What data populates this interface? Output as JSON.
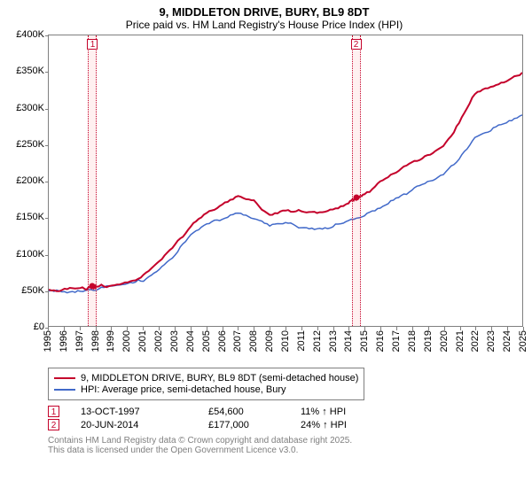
{
  "title_line1": "9, MIDDLETON DRIVE, BURY, BL9 8DT",
  "title_line2": "Price paid vs. HM Land Registry's House Price Index (HPI)",
  "chart": {
    "type": "line",
    "x_start": 1995,
    "x_end": 2025,
    "y_min": 0,
    "y_max": 400000,
    "y_step": 50000,
    "y_prefix": "£",
    "grid_color": "#7f7f7f",
    "background": "#ffffff",
    "series": [
      {
        "name": "9, MIDDLETON DRIVE, BURY, BL9 8DT (semi-detached house)",
        "color": "#c4022b",
        "width": 2,
        "points": [
          [
            1995,
            50000
          ],
          [
            1996,
            51000
          ],
          [
            1997,
            52000
          ],
          [
            1997.78,
            54600
          ],
          [
            1998,
            55000
          ],
          [
            1999,
            58000
          ],
          [
            2000,
            62000
          ],
          [
            2001,
            70000
          ],
          [
            2002,
            88000
          ],
          [
            2003,
            112000
          ],
          [
            2004,
            140000
          ],
          [
            2005,
            158000
          ],
          [
            2006,
            168000
          ],
          [
            2007,
            178000
          ],
          [
            2008,
            172000
          ],
          [
            2009,
            155000
          ],
          [
            2010,
            162000
          ],
          [
            2011,
            158000
          ],
          [
            2012,
            156000
          ],
          [
            2013,
            160000
          ],
          [
            2014,
            172000
          ],
          [
            2014.47,
            177000
          ],
          [
            2015,
            183000
          ],
          [
            2016,
            198000
          ],
          [
            2017,
            212000
          ],
          [
            2018,
            225000
          ],
          [
            2019,
            237000
          ],
          [
            2020,
            250000
          ],
          [
            2021,
            280000
          ],
          [
            2022,
            320000
          ],
          [
            2023,
            330000
          ],
          [
            2024,
            340000
          ],
          [
            2025,
            350000
          ]
        ]
      },
      {
        "name": "HPI: Average price, semi-detached house, Bury",
        "color": "#4169c9",
        "width": 1.5,
        "points": [
          [
            1995,
            48000
          ],
          [
            1996,
            49000
          ],
          [
            1997,
            50000
          ],
          [
            1998,
            52000
          ],
          [
            1999,
            55000
          ],
          [
            2000,
            58000
          ],
          [
            2001,
            65000
          ],
          [
            2002,
            80000
          ],
          [
            2003,
            100000
          ],
          [
            2004,
            125000
          ],
          [
            2005,
            140000
          ],
          [
            2006,
            150000
          ],
          [
            2007,
            158000
          ],
          [
            2008,
            150000
          ],
          [
            2009,
            138000
          ],
          [
            2010,
            142000
          ],
          [
            2011,
            138000
          ],
          [
            2012,
            136000
          ],
          [
            2013,
            138000
          ],
          [
            2014,
            145000
          ],
          [
            2015,
            152000
          ],
          [
            2016,
            165000
          ],
          [
            2017,
            178000
          ],
          [
            2018,
            188000
          ],
          [
            2019,
            198000
          ],
          [
            2020,
            208000
          ],
          [
            2021,
            232000
          ],
          [
            2022,
            262000
          ],
          [
            2023,
            272000
          ],
          [
            2024,
            280000
          ],
          [
            2025,
            290000
          ]
        ]
      }
    ],
    "markers": [
      {
        "num": "1",
        "x": 1997.78,
        "y": 54600
      },
      {
        "num": "2",
        "x": 2014.47,
        "y": 177000
      }
    ]
  },
  "sales": [
    {
      "num": "1",
      "date": "13-OCT-1997",
      "price": "£54,600",
      "pct": "11% ↑ HPI"
    },
    {
      "num": "2",
      "date": "20-JUN-2014",
      "price": "£177,000",
      "pct": "24% ↑ HPI"
    }
  ],
  "footer1": "Contains HM Land Registry data © Crown copyright and database right 2025.",
  "footer2": "This data is licensed under the Open Government Licence v3.0."
}
